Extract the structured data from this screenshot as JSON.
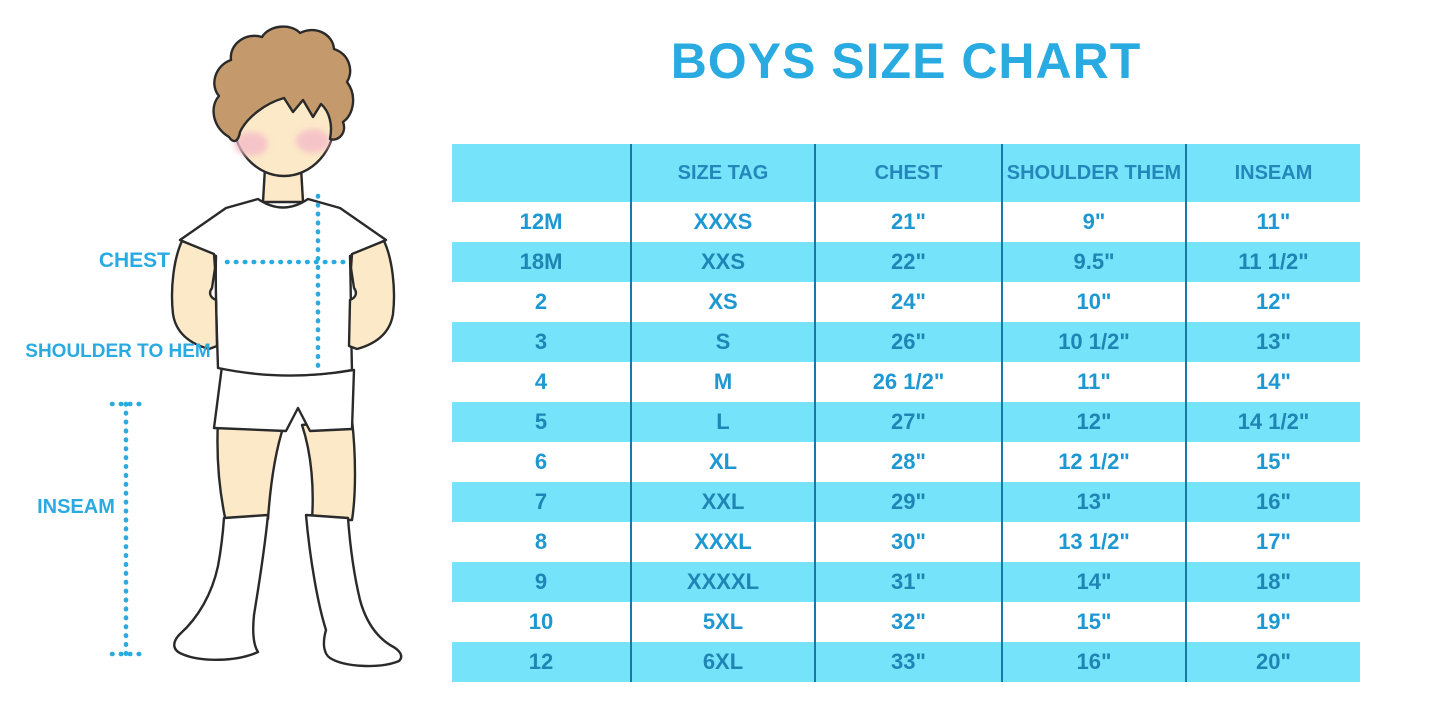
{
  "title": "BOYS SIZE CHART",
  "figure": {
    "labels": {
      "chest": "CHEST",
      "shoulder_to_hem": "SHOULDER TO HEM",
      "inseam": "INSEAM"
    }
  },
  "colors": {
    "accent_blue": "#29ABE2",
    "band_cyan": "#75E3FA",
    "divider_blue": "#1878A8",
    "header_text": "#2387BA",
    "cell_text": "#1E98D2",
    "cell_text_alt": "#1F85B5",
    "hair_brown": "#C49A6C",
    "skin": "#FCE9C8",
    "cheek_pink": "#F4BCC8",
    "outline": "#2A2A2A"
  },
  "chart_data": {
    "type": "table",
    "title": "BOYS SIZE CHART",
    "columns": [
      "",
      "SIZE TAG",
      "CHEST",
      "SHOULDER THEM",
      "INSEAM"
    ],
    "rows": [
      [
        "12M",
        "XXXS",
        "21\"",
        "9\"",
        "11\""
      ],
      [
        "18M",
        "XXS",
        "22\"",
        "9.5\"",
        "11 1/2\""
      ],
      [
        "2",
        "XS",
        "24\"",
        "10\"",
        "12\""
      ],
      [
        "3",
        "S",
        "26\"",
        "10 1/2\"",
        "13\""
      ],
      [
        "4",
        "M",
        "26 1/2\"",
        "11\"",
        "14\""
      ],
      [
        "5",
        "L",
        "27\"",
        "12\"",
        "14 1/2\""
      ],
      [
        "6",
        "XL",
        "28\"",
        "12 1/2\"",
        "15\""
      ],
      [
        "7",
        "XXL",
        "29\"",
        "13\"",
        "16\""
      ],
      [
        "8",
        "XXXL",
        "30\"",
        "13 1/2\"",
        "17\""
      ],
      [
        "9",
        "XXXXL",
        "31\"",
        "14\"",
        "18\""
      ],
      [
        "10",
        "5XL",
        "32\"",
        "15\"",
        "19\""
      ],
      [
        "12",
        "6XL",
        "33\"",
        "16\"",
        "20\""
      ]
    ],
    "layout": {
      "header_background": "cyan band",
      "row_striping": "white / cyan alternating starting white",
      "grid": "vertical dividers only, no outer border"
    },
    "measurement_annotations": [
      "CHEST",
      "SHOULDER TO HEM",
      "INSEAM"
    ]
  }
}
